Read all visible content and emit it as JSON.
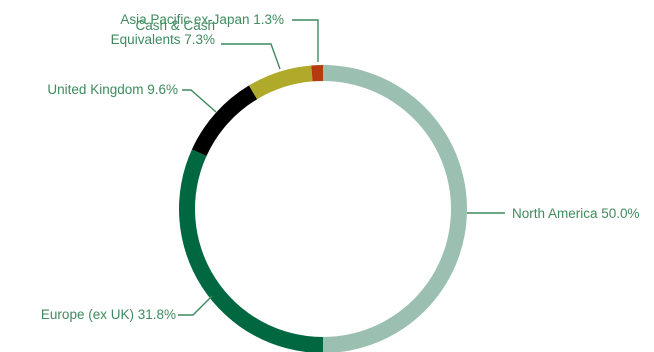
{
  "chart_data": {
    "type": "pie",
    "style": "donut",
    "slices": [
      {
        "label": "North America 50.0%",
        "name": "North America",
        "value": 50.0,
        "color": "#9bbfb0"
      },
      {
        "label": "Europe (ex UK) 31.8%",
        "name": "Europe (ex UK)",
        "value": 31.8,
        "color": "#006841"
      },
      {
        "label": "United Kingdom 9.6%",
        "name": "United Kingdom",
        "value": 9.6,
        "color": "#000000"
      },
      {
        "label": "Cash & Cash Equivalents 7.3%",
        "name": "Cash & Cash Equivalents",
        "value": 7.3,
        "color": "#b0aa2a"
      },
      {
        "label": "Asia Pacific ex-Japan 1.3%",
        "name": "Asia Pacific ex-Japan",
        "value": 1.3,
        "color": "#b53a0f"
      }
    ],
    "start_angle": "12 o'clock",
    "direction": "clockwise",
    "legend": "none (direct labels)",
    "label_color": "#3f8a5e"
  }
}
